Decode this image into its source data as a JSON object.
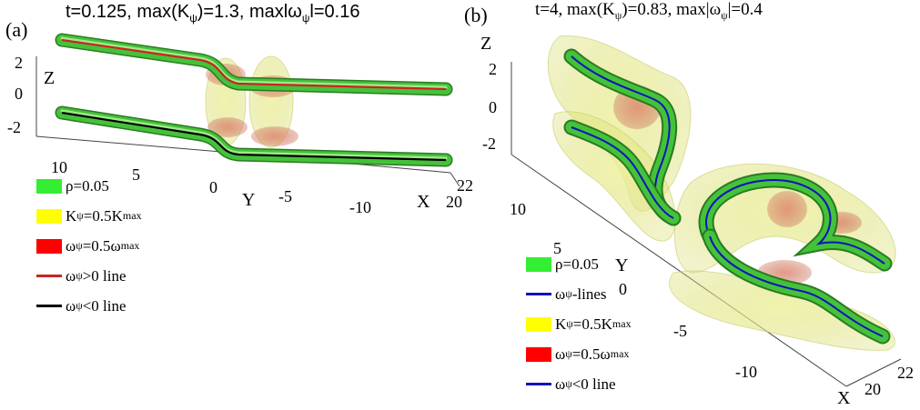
{
  "panel_a": {
    "label": "(a)",
    "title": {
      "text": "t=0.125, max(K",
      "sub1": "ψ",
      "mid": ")=1.3, maxlω",
      "sub2": "ψ",
      "end": "l=0.16"
    },
    "axes": {
      "z_label": "Z",
      "y_label": "Y",
      "x_label": "X",
      "z_ticks": [
        "2",
        "0",
        "-2"
      ],
      "y_ticks": [
        "10",
        "5",
        "0",
        "-5",
        "-10"
      ],
      "x_ticks": [
        "22",
        "20"
      ]
    },
    "legend": [
      {
        "kind": "patch",
        "color": "#33ee33",
        "text": "ρ=0.05",
        "sub": "",
        "tail": ""
      },
      {
        "kind": "patch",
        "color": "#ffff00",
        "text": "K",
        "sub": "ψ",
        "tail": "=0.5K",
        "sub2": "max"
      },
      {
        "kind": "patch",
        "color": "#ff0000",
        "text": "ω",
        "sub": "ψ",
        "tail": "=0.5ω",
        "sub2": "max"
      },
      {
        "kind": "line",
        "color": "#cc2222",
        "text": "ω",
        "sub": "ψ",
        "tail": ">0 line",
        "sub2": ""
      },
      {
        "kind": "line",
        "color": "#000000",
        "text": "ω",
        "sub": "ψ",
        "tail": "<0 line",
        "sub2": ""
      }
    ]
  },
  "panel_b": {
    "label": "(b)",
    "title": {
      "text": "t=4, max(K",
      "sub1": "ψ",
      "mid": ")=0.83, max|ω",
      "sub2": "ψ",
      "end": "|=0.4"
    },
    "axes": {
      "z_label": "Z",
      "y_label": "Y",
      "x_label": "X",
      "z_ticks": [
        "2",
        "0",
        "-2"
      ],
      "y_ticks": [
        "10",
        "5",
        "0",
        "-5",
        "-10"
      ],
      "x_ticks": [
        "20",
        "22"
      ]
    },
    "legend": [
      {
        "kind": "patch",
        "color": "#33ee33",
        "text": "ρ=0.05",
        "sub": "",
        "tail": "",
        "sub2": ""
      },
      {
        "kind": "line",
        "color": "#1111bb",
        "text": "ω",
        "sub": "ψ",
        "tail": "-lines",
        "sub2": ""
      },
      {
        "kind": "patch",
        "color": "#ffff00",
        "text": "K",
        "sub": "ψ",
        "tail": "=0.5K",
        "sub2": "max"
      },
      {
        "kind": "patch",
        "color": "#ff0000",
        "text": "ω",
        "sub": "ψ",
        "tail": "=0.5ω",
        "sub2": "max"
      },
      {
        "kind": "line",
        "color": "#1111bb",
        "text": "ω",
        "sub": "ψ",
        "tail": "<0 line",
        "sub2": ""
      }
    ]
  }
}
